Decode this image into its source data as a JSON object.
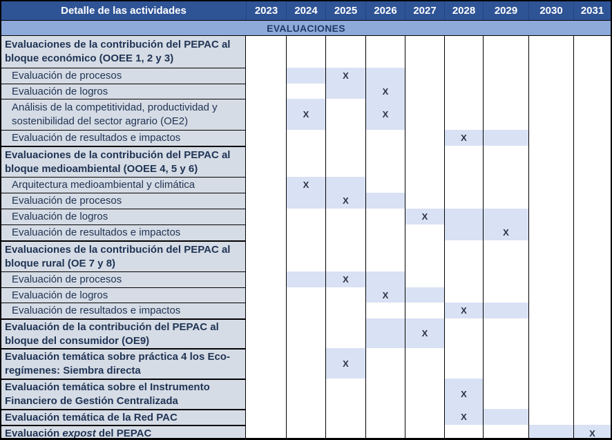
{
  "table": {
    "header": {
      "activities_label": "Detalle de las actividades",
      "years": [
        "2023",
        "2024",
        "2025",
        "2026",
        "2027",
        "2028",
        "2029",
        "2030",
        "2031"
      ]
    },
    "band_title": "EVALUACIONES",
    "mark_glyph": "X",
    "cell_legend": {
      "X": "shaded cell with X mark",
      "S": "shaded cell only"
    },
    "rows": [
      {
        "label": "Evaluaciones de la contribución del PEPAC al bloque económico (OOEE 1, 2 y 3)",
        "bold": true,
        "cells": {}
      },
      {
        "label": "Evaluación de procesos",
        "bold": false,
        "cells": {
          "2024": "S",
          "2025": "X",
          "2026": "S"
        }
      },
      {
        "label": "Evaluación de logros",
        "bold": false,
        "cells": {
          "2025": "S",
          "2026": "X"
        }
      },
      {
        "label": "Análisis de la competitividad, productividad y sostenibilidad del sector agrario (OE2)",
        "bold": false,
        "cells": {
          "2024": "X",
          "2026": "X"
        }
      },
      {
        "label": "Evaluación de resultados e impactos",
        "bold": false,
        "cells": {
          "2028": "X",
          "2029": "S"
        }
      },
      {
        "label": "Evaluaciones de la contribución del PEPAC al bloque medioambiental (OOEE 4, 5 y 6)",
        "bold": true,
        "cells": {}
      },
      {
        "label": "Arquitectura medioambiental y climática",
        "bold": false,
        "cells": {
          "2024": "X",
          "2025": "S"
        }
      },
      {
        "label": "Evaluación de procesos",
        "bold": false,
        "cells": {
          "2024": "S",
          "2025": "X",
          "2026": "S"
        }
      },
      {
        "label": "Evaluación de logros",
        "bold": false,
        "cells": {
          "2027": "X",
          "2028": "S",
          "2029": "S"
        }
      },
      {
        "label": "Evaluación de resultados e impactos",
        "bold": false,
        "cells": {
          "2028": "S",
          "2029": "X"
        }
      },
      {
        "label": "Evaluaciones de la contribución del PEPAC al bloque rural (OE 7 y 8)",
        "bold": true,
        "cells": {}
      },
      {
        "label": "Evaluación de procesos",
        "bold": false,
        "cells": {
          "2024": "S",
          "2025": "X",
          "2026": "S"
        }
      },
      {
        "label": "Evaluación de logros",
        "bold": false,
        "cells": {
          "2026": "X",
          "2027": "S"
        }
      },
      {
        "label": "Evaluación de resultados e impactos",
        "bold": false,
        "cells": {
          "2028": "X",
          "2029": "S"
        }
      },
      {
        "label": "Evaluación de la contribución del PEPAC al bloque del consumidor (OE9)",
        "bold": true,
        "cells": {
          "2026": "S",
          "2027": "X"
        }
      },
      {
        "label": "Evaluación temática sobre práctica 4 los Eco-regímenes: Siembra directa",
        "bold": true,
        "cells": {
          "2025": "X"
        }
      },
      {
        "label": "Evaluación temática sobre el Instrumento Financiero de Gestión Centralizada",
        "bold": true,
        "cells": {
          "2028": "X"
        }
      },
      {
        "label": "Evaluación temática de la Red PAC",
        "bold": true,
        "cells": {
          "2028": "X",
          "2029": "S"
        }
      },
      {
        "label": "Evaluación expost del PEPAC",
        "bold": true,
        "label_parts": [
          {
            "t": "Evaluación ",
            "i": false
          },
          {
            "t": "expost",
            "i": true
          },
          {
            "t": " del PEPAC",
            "i": false
          }
        ],
        "cells": {
          "2030": "S",
          "2031": "X"
        }
      }
    ]
  },
  "colors": {
    "header_bg": "#2F5496",
    "header_text": "#FFFFFF",
    "band_bg": "#8EAADB",
    "band_text": "#1F3864",
    "label_column_bg": "#D6DCE5",
    "shaded_cell_bg": "#D9E1F4",
    "grid_line": "#000000",
    "label_text": "#203455",
    "mark_text": "#2B3140"
  }
}
